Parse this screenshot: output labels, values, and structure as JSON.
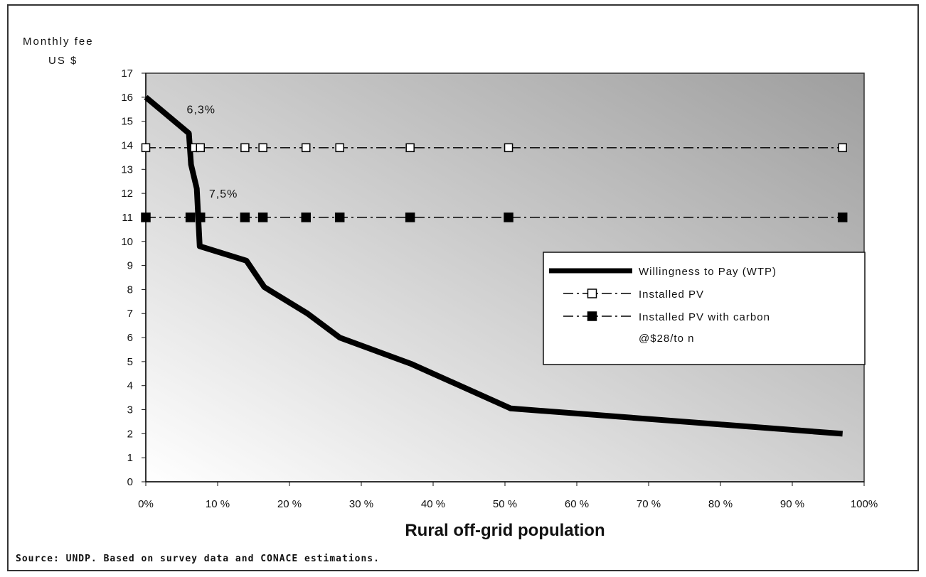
{
  "chart_data": {
    "type": "line",
    "ylabel": [
      "Monthly fee",
      "US $"
    ],
    "xlabel": "Rural off-grid  population",
    "xlim": [
      0,
      100
    ],
    "ylim": [
      0,
      17
    ],
    "x_ticks": [
      "0%",
      "10 %",
      "20 %",
      "30 %",
      "40 %",
      "50 %",
      "60 %",
      "70 %",
      "80 %",
      "90 %",
      "100%"
    ],
    "y_ticks": [
      "0",
      "1",
      "2",
      "3",
      "4",
      "5",
      "6",
      "7",
      "8",
      "9",
      "10",
      "11",
      "12",
      "13",
      "14",
      "15",
      "16",
      "17"
    ],
    "series": [
      {
        "name": "Willingness  to Pay (WTP)",
        "style": "thick-solid",
        "color": "#000000",
        "points": [
          [
            0,
            16
          ],
          [
            2,
            15.5
          ],
          [
            6,
            14.5
          ],
          [
            6.3,
            13.2
          ],
          [
            7.1,
            12.2
          ],
          [
            7.5,
            9.8
          ],
          [
            14,
            9.2
          ],
          [
            16.5,
            8.1
          ],
          [
            22.5,
            7
          ],
          [
            27,
            6
          ],
          [
            37,
            4.9
          ],
          [
            50.8,
            3.05
          ],
          [
            97,
            2
          ]
        ]
      },
      {
        "name": "Installed PV",
        "style": "dash-dot-open-square",
        "color": "#000000",
        "points": [
          [
            0,
            13.9
          ],
          [
            6.8,
            13.9
          ],
          [
            7.6,
            13.9
          ],
          [
            13.8,
            13.9
          ],
          [
            16.3,
            13.9
          ],
          [
            22.3,
            13.9
          ],
          [
            27,
            13.9
          ],
          [
            36.8,
            13.9
          ],
          [
            50.5,
            13.9
          ],
          [
            97,
            13.9
          ]
        ]
      },
      {
        "name": "Installed PV with carbon @$28/ton",
        "name_lines": [
          "Installed  PV  with  carbon",
          "@$28/to n"
        ],
        "style": "dash-dot-filled-square",
        "color": "#000000",
        "points": [
          [
            0,
            11
          ],
          [
            6.2,
            11
          ],
          [
            7.6,
            11
          ],
          [
            13.8,
            11
          ],
          [
            16.3,
            11
          ],
          [
            22.3,
            11
          ],
          [
            27,
            11
          ],
          [
            36.8,
            11
          ],
          [
            50.5,
            11
          ],
          [
            97,
            11
          ]
        ]
      }
    ],
    "annotations": [
      {
        "text": "6,3%",
        "x": 5.5,
        "y": 15.5
      },
      {
        "text": "7,5%",
        "x": 8.6,
        "y": 12
      }
    ],
    "legend_position": "right",
    "grid": false
  },
  "source_note": "Source:  UNDP.  Based  on  survey  data  and  CONACE  estimations."
}
